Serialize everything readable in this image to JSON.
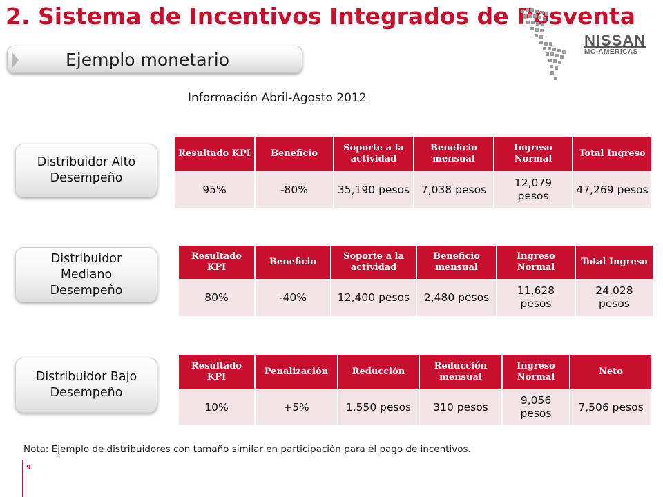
{
  "header": {
    "title": "2. Sistema de Incentivos Integrados de Posventa",
    "brand_name": "NISSAN",
    "brand_sub": "MC-AMERICAS"
  },
  "section_label": "Ejemplo monetario",
  "subtitle": "Información Abril-Agosto 2012",
  "categories": [
    {
      "label": "Distribuidor Alto Desempeño",
      "headers": [
        "Resultado KPI",
        "Beneficio",
        "Soporte a la actividad",
        "Beneficio mensual",
        "Ingreso Normal",
        "Total Ingreso"
      ],
      "values": [
        "95%",
        "-80%",
        "35,190 pesos",
        "7,038 pesos",
        "12,079 pesos",
        "47,269 pesos"
      ]
    },
    {
      "label": "Distribuidor Mediano Desempeño",
      "headers": [
        "Resultado KPI",
        "Beneficio",
        "Soporte a la actividad",
        "Beneficio mensual",
        "Ingreso Normal",
        "Total Ingreso"
      ],
      "values": [
        "80%",
        "-40%",
        "12,400 pesos",
        "2,480 pesos",
        "11,628 pesos",
        "24,028 pesos"
      ]
    },
    {
      "label": "Distribuidor Bajo Desempeño",
      "headers": [
        "Resultado KPI",
        "Penalización",
        "Reducción",
        "Reducción mensual",
        "Ingreso Normal",
        "Neto"
      ],
      "values": [
        "10%",
        "+5%",
        "1,550 pesos",
        "310 pesos",
        "9,056 pesos",
        "7,506 pesos"
      ]
    }
  ],
  "note": "Nota: Ejemplo de distribuidores  con tamaño similar en participación para el pago de incentivos.",
  "page_number": "9",
  "colors": {
    "accent_red": "#c8102e",
    "cell_pink": "#f3e4e8",
    "brand_gray": "#5a5a5a"
  },
  "icons": [
    "americas-map-logo",
    "section-arrow-icon"
  ]
}
